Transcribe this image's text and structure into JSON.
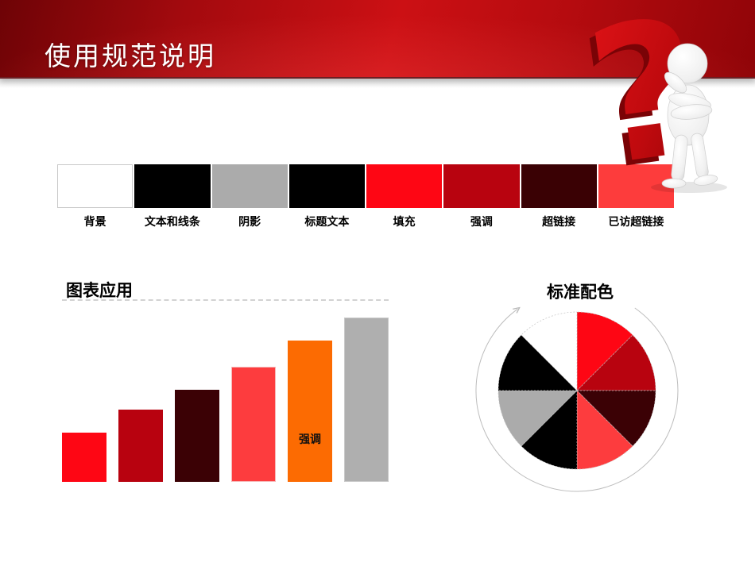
{
  "slide": {
    "title": "使用规范说明",
    "background_color": "#FFFFFF",
    "banner_colors": {
      "dark": "#6E0306",
      "base": "#B50B0F",
      "bright": "#CC1014"
    }
  },
  "palette": {
    "border_color": "#C9C9C9",
    "items": [
      {
        "label": "背景",
        "color": "#FFFFFF"
      },
      {
        "label": "文本和线条",
        "color": "#000000"
      },
      {
        "label": "阴影",
        "color": "#ABABAB"
      },
      {
        "label": "标题文本",
        "color": "#000000"
      },
      {
        "label": "填充",
        "color": "#FE0614"
      },
      {
        "label": "强调",
        "color": "#B8030F"
      },
      {
        "label": "超链接",
        "color": "#3A0104"
      },
      {
        "label": "已访超链接",
        "color": "#FD3C3C"
      }
    ]
  },
  "chart_data": [
    {
      "type": "bar",
      "title": "图表应用",
      "categories": [
        "",
        "",
        "",
        "",
        "",
        ""
      ],
      "values": [
        30,
        44,
        56,
        70,
        86,
        100
      ],
      "ylim": [
        0,
        100
      ],
      "colors": [
        "#FE0614",
        "#B8020F",
        "#3B0105",
        "#FD3C3E",
        "#FC6B02",
        "#AFAFAF"
      ],
      "border_colors": [
        null,
        null,
        null,
        "#F6B8B8",
        null,
        "#C9C9C9"
      ],
      "bar_labels": [
        "",
        "",
        "",
        "",
        "强调",
        ""
      ],
      "xlabel": "",
      "ylabel": "",
      "grid": false,
      "axes_visible": false,
      "legend": "none"
    },
    {
      "type": "pie",
      "title": "标准配色",
      "values": [
        12.5,
        12.5,
        12.5,
        12.5,
        12.5,
        12.5,
        12.5,
        12.5
      ],
      "colors": [
        "#FE0614",
        "#B8030F",
        "#3B0105",
        "#FD3C3E",
        "#000000",
        "#ABABAB",
        "#000000",
        "#FFFFFF"
      ],
      "start_angle": "12-oclock",
      "direction": "clockwise",
      "slice_outline": "#C4C4C4",
      "annotation": "thin gray circular arrow surrounding the pie, arrowhead at upper-left pointing clockwise",
      "legend": "none"
    }
  ],
  "decoration": {
    "question_mark": "?",
    "question_mark_color": "#C60D11",
    "question_mark_shadow_color": "#7A0306",
    "figure_color": "#F2F2F2"
  }
}
